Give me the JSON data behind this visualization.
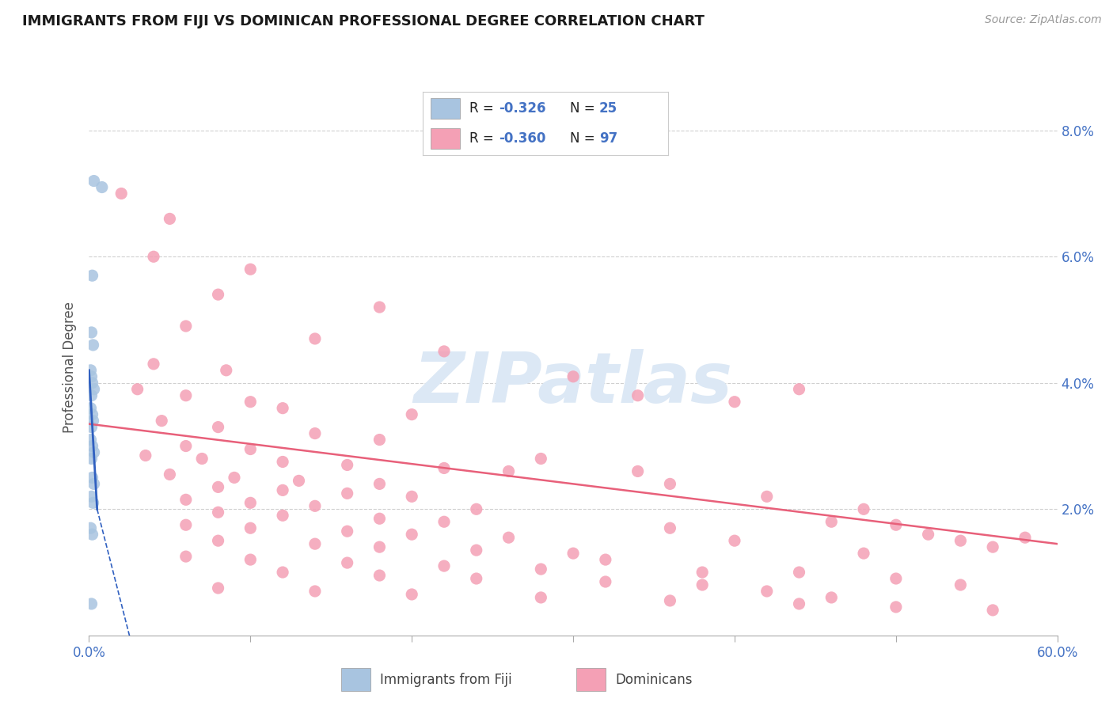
{
  "title": "IMMIGRANTS FROM FIJI VS DOMINICAN PROFESSIONAL DEGREE CORRELATION CHART",
  "source": "Source: ZipAtlas.com",
  "ylabel": "Professional Degree",
  "legend_fiji": "Immigrants from Fiji",
  "legend_dominicans": "Dominicans",
  "fiji_R": "-0.326",
  "fiji_N": "25",
  "dominican_R": "-0.360",
  "dominican_N": "97",
  "fiji_color": "#a8c4e0",
  "dominican_color": "#f4a0b5",
  "fiji_line_color": "#3060c0",
  "dominican_line_color": "#e8607a",
  "fiji_scatter": [
    [
      0.3,
      7.2
    ],
    [
      0.8,
      7.1
    ],
    [
      0.2,
      5.7
    ],
    [
      0.15,
      4.8
    ],
    [
      0.25,
      4.6
    ],
    [
      0.1,
      4.2
    ],
    [
      0.15,
      4.1
    ],
    [
      0.2,
      4.0
    ],
    [
      0.3,
      3.9
    ],
    [
      0.15,
      3.8
    ],
    [
      0.1,
      3.6
    ],
    [
      0.2,
      3.5
    ],
    [
      0.25,
      3.4
    ],
    [
      0.15,
      3.3
    ],
    [
      0.1,
      3.1
    ],
    [
      0.2,
      3.0
    ],
    [
      0.3,
      2.9
    ],
    [
      0.15,
      2.8
    ],
    [
      0.2,
      2.5
    ],
    [
      0.3,
      2.4
    ],
    [
      0.15,
      2.2
    ],
    [
      0.25,
      2.1
    ],
    [
      0.1,
      1.7
    ],
    [
      0.2,
      1.6
    ],
    [
      0.15,
      0.5
    ]
  ],
  "dominican_scatter": [
    [
      2.0,
      7.0
    ],
    [
      5.0,
      6.6
    ],
    [
      4.0,
      6.0
    ],
    [
      10.0,
      5.8
    ],
    [
      8.0,
      5.4
    ],
    [
      18.0,
      5.2
    ],
    [
      6.0,
      4.9
    ],
    [
      14.0,
      4.7
    ],
    [
      22.0,
      4.5
    ],
    [
      4.0,
      4.3
    ],
    [
      8.5,
      4.2
    ],
    [
      30.0,
      4.1
    ],
    [
      3.0,
      3.9
    ],
    [
      6.0,
      3.8
    ],
    [
      10.0,
      3.7
    ],
    [
      12.0,
      3.6
    ],
    [
      20.0,
      3.5
    ],
    [
      4.5,
      3.4
    ],
    [
      8.0,
      3.3
    ],
    [
      14.0,
      3.2
    ],
    [
      18.0,
      3.1
    ],
    [
      6.0,
      3.0
    ],
    [
      10.0,
      2.95
    ],
    [
      3.5,
      2.85
    ],
    [
      7.0,
      2.8
    ],
    [
      12.0,
      2.75
    ],
    [
      16.0,
      2.7
    ],
    [
      22.0,
      2.65
    ],
    [
      26.0,
      2.6
    ],
    [
      5.0,
      2.55
    ],
    [
      9.0,
      2.5
    ],
    [
      13.0,
      2.45
    ],
    [
      18.0,
      2.4
    ],
    [
      8.0,
      2.35
    ],
    [
      12.0,
      2.3
    ],
    [
      16.0,
      2.25
    ],
    [
      20.0,
      2.2
    ],
    [
      6.0,
      2.15
    ],
    [
      10.0,
      2.1
    ],
    [
      14.0,
      2.05
    ],
    [
      24.0,
      2.0
    ],
    [
      8.0,
      1.95
    ],
    [
      12.0,
      1.9
    ],
    [
      18.0,
      1.85
    ],
    [
      22.0,
      1.8
    ],
    [
      6.0,
      1.75
    ],
    [
      10.0,
      1.7
    ],
    [
      16.0,
      1.65
    ],
    [
      20.0,
      1.6
    ],
    [
      26.0,
      1.55
    ],
    [
      8.0,
      1.5
    ],
    [
      14.0,
      1.45
    ],
    [
      18.0,
      1.4
    ],
    [
      24.0,
      1.35
    ],
    [
      30.0,
      1.3
    ],
    [
      6.0,
      1.25
    ],
    [
      10.0,
      1.2
    ],
    [
      16.0,
      1.15
    ],
    [
      22.0,
      1.1
    ],
    [
      28.0,
      1.05
    ],
    [
      12.0,
      1.0
    ],
    [
      18.0,
      0.95
    ],
    [
      24.0,
      0.9
    ],
    [
      32.0,
      0.85
    ],
    [
      38.0,
      0.8
    ],
    [
      8.0,
      0.75
    ],
    [
      14.0,
      0.7
    ],
    [
      20.0,
      0.65
    ],
    [
      28.0,
      0.6
    ],
    [
      36.0,
      0.55
    ],
    [
      44.0,
      0.5
    ],
    [
      50.0,
      0.45
    ],
    [
      34.0,
      3.8
    ],
    [
      40.0,
      3.7
    ],
    [
      42.0,
      2.2
    ],
    [
      36.0,
      2.4
    ],
    [
      46.0,
      1.8
    ],
    [
      52.0,
      1.6
    ],
    [
      48.0,
      2.0
    ],
    [
      54.0,
      1.5
    ],
    [
      56.0,
      1.4
    ],
    [
      58.0,
      1.55
    ],
    [
      44.0,
      1.0
    ],
    [
      50.0,
      0.9
    ],
    [
      36.0,
      1.7
    ],
    [
      40.0,
      1.5
    ],
    [
      44.0,
      3.9
    ],
    [
      48.0,
      1.3
    ],
    [
      56.0,
      0.4
    ],
    [
      34.0,
      2.6
    ],
    [
      28.0,
      2.8
    ],
    [
      32.0,
      1.2
    ],
    [
      38.0,
      1.0
    ],
    [
      42.0,
      0.7
    ],
    [
      46.0,
      0.6
    ],
    [
      50.0,
      1.75
    ],
    [
      54.0,
      0.8
    ]
  ],
  "fiji_trendline_solid": [
    [
      0.0,
      4.2
    ],
    [
      0.5,
      2.0
    ]
  ],
  "fiji_trendline_dash": [
    [
      0.5,
      2.0
    ],
    [
      4.5,
      -2.0
    ]
  ],
  "dominican_trendline": [
    [
      0.0,
      3.35
    ],
    [
      60.0,
      1.45
    ]
  ],
  "xmin": 0.0,
  "xmax": 60.0,
  "ymin": 0.0,
  "ymax": 8.5,
  "ytick_vals": [
    2.0,
    4.0,
    6.0,
    8.0
  ],
  "xtick_minor": [
    10,
    20,
    30,
    40,
    50
  ],
  "background_color": "#ffffff",
  "grid_color": "#d0d0d0",
  "watermark": "ZIPatlas",
  "watermark_color": "#dce8f5"
}
